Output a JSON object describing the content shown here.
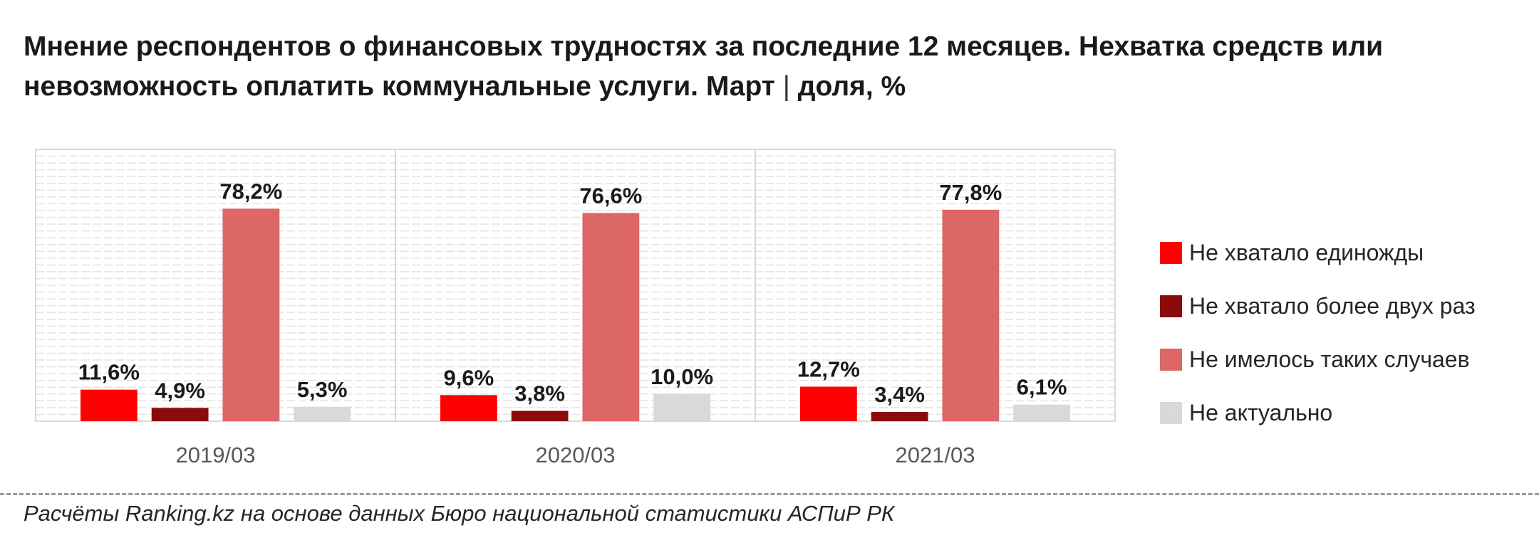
{
  "title": {
    "main": "Мнение респондентов о финансовых трудностях за последние 12 месяцев. Нехватка средств или невозможность оплатить коммунальные услуги. Март",
    "separator": " | ",
    "unit": "доля, %"
  },
  "chart_data": {
    "type": "bar",
    "categories": [
      "2019/03",
      "2020/03",
      "2021/03"
    ],
    "series": [
      {
        "name": "Не хватало единожды",
        "color": "#ff0000",
        "values": [
          11.6,
          9.6,
          12.7
        ],
        "labels": [
          "11,6%",
          "9,6%",
          "12,7%"
        ]
      },
      {
        "name": "Не хватало более двух раз",
        "color": "#8b0a0a",
        "values": [
          4.9,
          3.8,
          3.4
        ],
        "labels": [
          "4,9%",
          "3,8%",
          "3,4%"
        ]
      },
      {
        "name": "Не имелось таких случаев",
        "color": "#dd6666",
        "values": [
          78.2,
          76.6,
          77.8
        ],
        "labels": [
          "78,2%",
          "76,6%",
          "77,8%"
        ]
      },
      {
        "name": "Не актуально",
        "color": "#d9d9d9",
        "values": [
          5.3,
          10.0,
          6.1
        ],
        "labels": [
          "5,3%",
          "10,0%",
          "6,1%"
        ]
      }
    ],
    "ylim": [
      0,
      100
    ],
    "grid": true,
    "legend_position": "right"
  },
  "source": "Расчёты Ranking.kz на основе данных Бюро национальной статистики АСПиР РК"
}
